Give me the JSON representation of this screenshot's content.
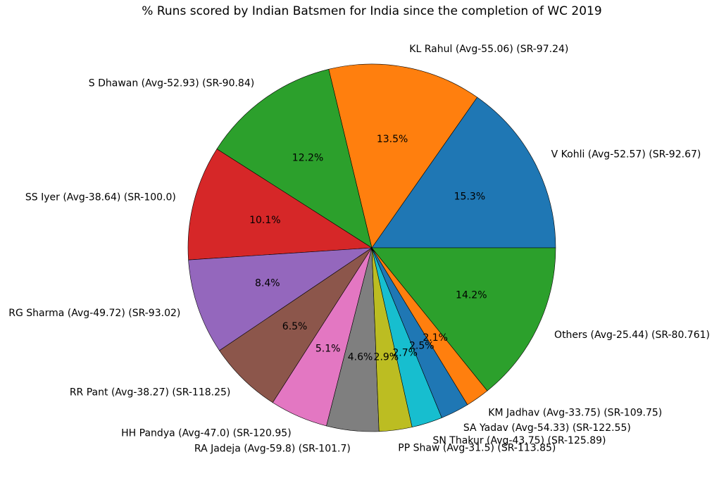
{
  "chart_data": {
    "type": "pie",
    "title": "% Runs scored by Indian Batsmen for India since the completion of WC 2019",
    "slices": [
      {
        "label": "V Kohli (Avg-52.57) (SR-92.67)",
        "value": 15.3,
        "pct_label": "15.3%",
        "color": "#1f77b4"
      },
      {
        "label": "KL Rahul (Avg-55.06) (SR-97.24)",
        "value": 13.5,
        "pct_label": "13.5%",
        "color": "#ff7f0e"
      },
      {
        "label": "S Dhawan (Avg-52.93) (SR-90.84)",
        "value": 12.2,
        "pct_label": "12.2%",
        "color": "#2ca02c"
      },
      {
        "label": "SS Iyer (Avg-38.64) (SR-100.0)",
        "value": 10.1,
        "pct_label": "10.1%",
        "color": "#d62728"
      },
      {
        "label": "RG Sharma (Avg-49.72) (SR-93.02)",
        "value": 8.4,
        "pct_label": "8.4%",
        "color": "#9467bd"
      },
      {
        "label": "RR Pant (Avg-38.27) (SR-118.25)",
        "value": 6.5,
        "pct_label": "6.5%",
        "color": "#8c564b"
      },
      {
        "label": "HH Pandya (Avg-47.0) (SR-120.95)",
        "value": 5.1,
        "pct_label": "5.1%",
        "color": "#e377c2"
      },
      {
        "label": "RA Jadeja (Avg-59.8) (SR-101.7)",
        "value": 4.6,
        "pct_label": "4.6%",
        "color": "#7f7f7f"
      },
      {
        "label": "PP Shaw (Avg-31.5) (SR-113.85)",
        "value": 2.9,
        "pct_label": "2.9%",
        "color": "#bcbd22"
      },
      {
        "label": "SN Thakur (Avg-43.75) (SR-125.89)",
        "value": 2.7,
        "pct_label": "2.7%",
        "color": "#17becf"
      },
      {
        "label": "SA Yadav (Avg-54.33) (SR-122.55)",
        "value": 2.5,
        "pct_label": "2.5%",
        "color": "#1f77b4"
      },
      {
        "label": "KM Jadhav (Avg-33.75) (SR-109.75)",
        "value": 2.1,
        "pct_label": "2.1%",
        "color": "#ff7f0e"
      },
      {
        "label": "Others (Avg-25.44) (SR-80.761)",
        "value": 14.2,
        "pct_label": "14.2%",
        "color": "#2ca02c"
      }
    ],
    "start_angle_deg": 0,
    "direction": "counterclockwise",
    "legend": "none"
  }
}
